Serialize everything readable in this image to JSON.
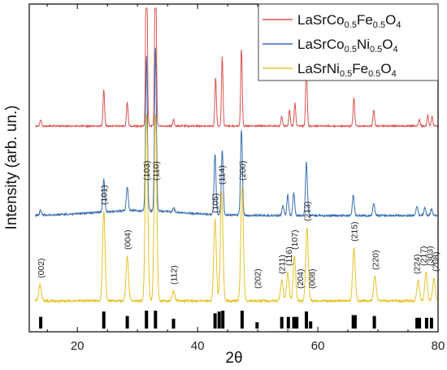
{
  "chart_data": {
    "type": "line",
    "xlabel": "2θ",
    "ylabel": "Intensity (arb. un.)",
    "xlim": [
      12,
      80
    ],
    "xticks": [
      20,
      40,
      60,
      80
    ],
    "grid": false,
    "legend": {
      "placement": "top-right",
      "entries": [
        {
          "base": "LaSrCo",
          "sub1": "0.5",
          "mid": "Fe",
          "sub2": "0.5",
          "tail": "O",
          "sub3": "4",
          "color": "#d9534f"
        },
        {
          "base": "LaSrCo",
          "sub1": "0.5",
          "mid": "Ni",
          "sub2": "0.5",
          "tail": "O",
          "sub3": "4",
          "color": "#3a6fb0"
        },
        {
          "base": "LaSrNi",
          "sub1": "0.5",
          "mid": "Fe",
          "sub2": "0.5",
          "tail": "O",
          "sub3": "4",
          "color": "#e6c229"
        }
      ]
    },
    "series": [
      {
        "name": "LaSrCo0.5Fe0.5O4",
        "color": "#d9534f",
        "peaks": [
          [
            13.9,
            8
          ],
          [
            24.4,
            45
          ],
          [
            28.3,
            30
          ],
          [
            31.5,
            270
          ],
          [
            33.0,
            260
          ],
          [
            36.0,
            8
          ],
          [
            43.0,
            60
          ],
          [
            44.1,
            85
          ],
          [
            47.3,
            95
          ],
          [
            54.0,
            12
          ],
          [
            55.3,
            20
          ],
          [
            56.2,
            28
          ],
          [
            58.1,
            80
          ],
          [
            66.0,
            35
          ],
          [
            69.3,
            20
          ],
          [
            76.9,
            8
          ],
          [
            78.3,
            14
          ],
          [
            79.0,
            12
          ]
        ]
      },
      {
        "name": "LaSrCo0.5Ni0.5O4",
        "color": "#3a6fb0",
        "peaks": [
          [
            13.9,
            6
          ],
          [
            24.4,
            40
          ],
          [
            28.3,
            30
          ],
          [
            31.5,
            190
          ],
          [
            33.0,
            200
          ],
          [
            36.0,
            6
          ],
          [
            42.9,
            75
          ],
          [
            44.1,
            80
          ],
          [
            47.3,
            105
          ],
          [
            54.2,
            12
          ],
          [
            55.0,
            25
          ],
          [
            56.0,
            28
          ],
          [
            58.1,
            65
          ],
          [
            65.9,
            25
          ],
          [
            69.3,
            15
          ],
          [
            76.5,
            12
          ],
          [
            77.8,
            10
          ],
          [
            78.9,
            8
          ]
        ]
      },
      {
        "name": "LaSrNi0.5Fe0.5O4",
        "color": "#e6c229",
        "peaks": [
          [
            13.8,
            20
          ],
          [
            24.4,
            110
          ],
          [
            28.3,
            55
          ],
          [
            31.5,
            230
          ],
          [
            33.0,
            230
          ],
          [
            36.0,
            12
          ],
          [
            42.9,
            100
          ],
          [
            44.0,
            135
          ],
          [
            47.4,
            140
          ],
          [
            54.0,
            25
          ],
          [
            55.0,
            35
          ],
          [
            56.1,
            55
          ],
          [
            58.2,
            90
          ],
          [
            66.0,
            65
          ],
          [
            69.5,
            30
          ],
          [
            76.7,
            25
          ],
          [
            78.0,
            35
          ],
          [
            79.3,
            28
          ]
        ]
      }
    ],
    "peak_labels": [
      {
        "text": "(002)",
        "x": 13.9
      },
      {
        "text": "(101)",
        "x": 24.4
      },
      {
        "text": "(004)",
        "x": 28.3
      },
      {
        "text": "(103)",
        "x": 31.5
      },
      {
        "text": "(110)",
        "x": 33.0
      },
      {
        "text": "(112)",
        "x": 36.0
      },
      {
        "text": "(105)",
        "x": 42.9
      },
      {
        "text": "(114)",
        "x": 44.0
      },
      {
        "text": "(200)",
        "x": 47.4
      },
      {
        "text": "(202)",
        "x": 49.9
      },
      {
        "text": "(211)",
        "x": 54.0
      },
      {
        "text": "(116)",
        "x": 55.1
      },
      {
        "text": "(107)",
        "x": 56.1
      },
      {
        "text": "(204)",
        "x": 57.0
      },
      {
        "text": "(213)",
        "x": 58.2
      },
      {
        "text": "(008)",
        "x": 59.0
      },
      {
        "text": "(215)",
        "x": 66.0
      },
      {
        "text": "(220)",
        "x": 69.5
      },
      {
        "text": "(224)",
        "x": 76.4
      },
      {
        "text": "(217)",
        "x": 77.5
      },
      {
        "text": "(303)",
        "x": 78.6
      },
      {
        "text": "(208)",
        "x": 79.5
      }
    ],
    "reference_lines": [
      {
        "x": 13.9,
        "v": 0.65
      },
      {
        "x": 24.4,
        "v": 0.95
      },
      {
        "x": 28.3,
        "v": 0.7
      },
      {
        "x": 31.5,
        "v": 1.0
      },
      {
        "x": 33.0,
        "v": 1.0
      },
      {
        "x": 36.0,
        "v": 0.55
      },
      {
        "x": 42.9,
        "v": 0.85
      },
      {
        "x": 43.6,
        "v": 0.95
      },
      {
        "x": 44.2,
        "v": 1.0
      },
      {
        "x": 47.4,
        "v": 1.0
      },
      {
        "x": 49.9,
        "v": 0.35
      },
      {
        "x": 54.0,
        "v": 0.65
      },
      {
        "x": 55.1,
        "v": 0.65
      },
      {
        "x": 56.0,
        "v": 0.65
      },
      {
        "x": 56.5,
        "v": 0.65
      },
      {
        "x": 58.1,
        "v": 0.95
      },
      {
        "x": 58.8,
        "v": 0.4
      },
      {
        "x": 65.9,
        "v": 0.75
      },
      {
        "x": 66.2,
        "v": 0.75
      },
      {
        "x": 69.4,
        "v": 0.7
      },
      {
        "x": 76.5,
        "v": 0.6
      },
      {
        "x": 76.9,
        "v": 0.6
      },
      {
        "x": 78.1,
        "v": 0.6
      },
      {
        "x": 78.9,
        "v": 0.6
      }
    ]
  }
}
